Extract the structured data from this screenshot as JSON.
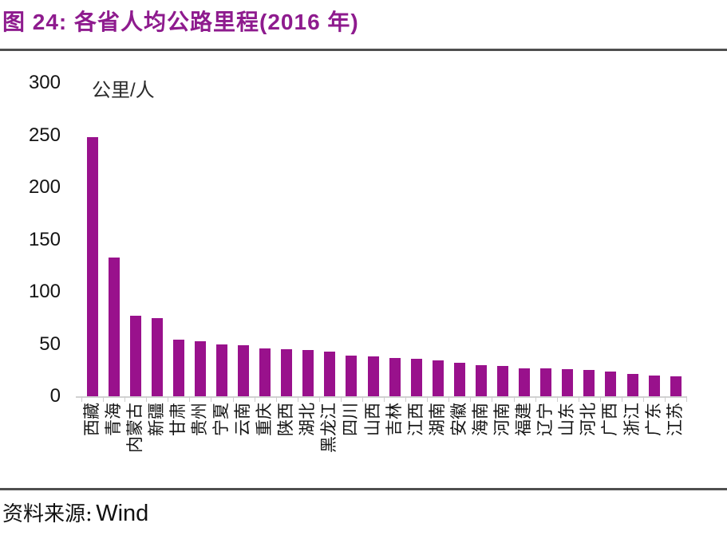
{
  "title": "图 24:  各省人均公路里程(2016 年)",
  "source": {
    "label": "资料来源:",
    "value": "Wind"
  },
  "colors": {
    "bar": "#99118C",
    "title": "#8E1B8E",
    "rule": "#4F4F4F",
    "axis_line": "#D2D2D2",
    "tick_text": "#141414"
  },
  "chart_data": {
    "type": "bar",
    "title": "图 24: 各省人均公路里程(2016 年)",
    "unit_label": "公里/人",
    "ylabel": "公里/人",
    "xlabel": "",
    "ylim": [
      0,
      300
    ],
    "yticks": [
      300,
      250,
      200,
      150,
      100,
      50,
      0
    ],
    "grid": false,
    "legend": "none",
    "bar_color": "#99118C",
    "categories": [
      "西藏",
      "青海",
      "内蒙古",
      "新疆",
      "甘肃",
      "贵州",
      "宁夏",
      "云南",
      "重庆",
      "陕西",
      "湖北",
      "黑龙江",
      "四川",
      "山西",
      "吉林",
      "江西",
      "湖南",
      "安徽",
      "海南",
      "河南",
      "福建",
      "辽宁",
      "山东",
      "河北",
      "广西",
      "浙江",
      "广东",
      "江苏"
    ],
    "values": [
      248,
      133,
      77,
      75,
      54,
      53,
      50,
      49,
      46,
      45,
      44,
      43,
      39,
      38,
      37,
      36,
      34,
      32,
      30,
      29,
      27,
      27,
      26,
      25,
      24,
      21,
      20,
      19
    ]
  }
}
